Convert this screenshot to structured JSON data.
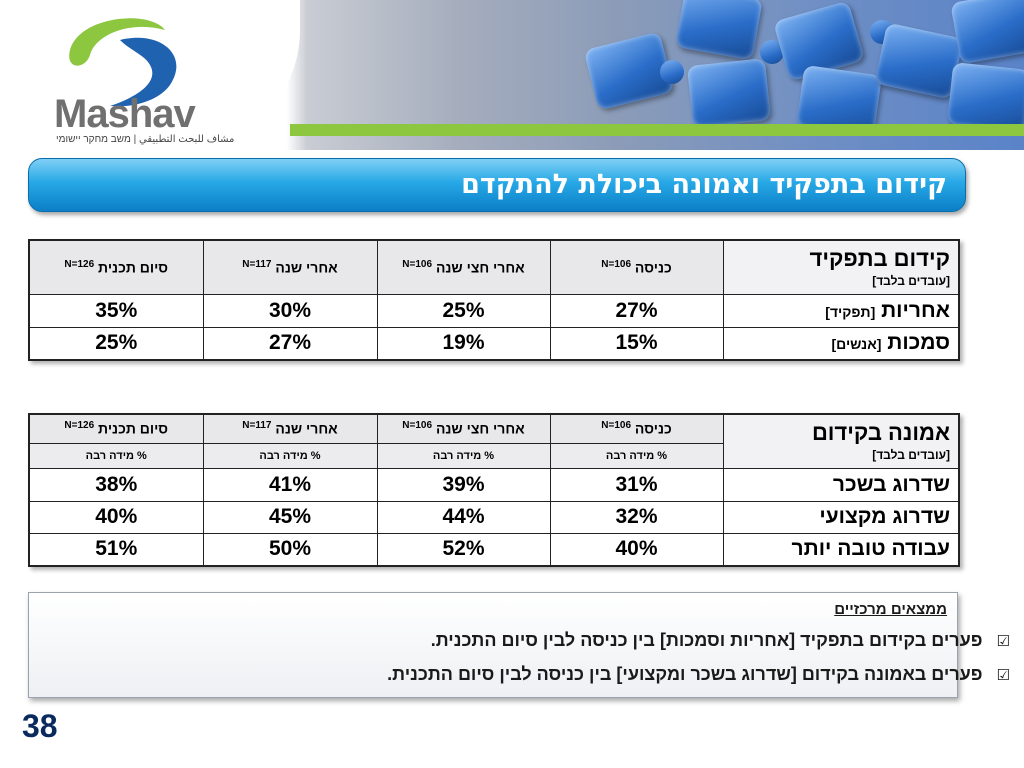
{
  "header": {
    "logo_text": "Mashav",
    "logo_subtitle": "مشاف للبحث التطبيقي | משב מחקר יישומי",
    "colors": {
      "green": "#8dc63f",
      "puzzle_blue": "#2a6dc9"
    }
  },
  "title": "קידום בתפקיד ואמונה ביכולת להתקדם",
  "table1": {
    "corner_title": "קידום בתפקיד",
    "corner_note": "[עובדים בלבד]",
    "columns": [
      {
        "label": "כניסה",
        "n": "N=106"
      },
      {
        "label": "אחרי חצי שנה",
        "n": "N=106"
      },
      {
        "label": "אחרי שנה",
        "n": "N=117"
      },
      {
        "label": "סיום תכנית",
        "n": "N=126"
      }
    ],
    "rows": [
      {
        "label": "אחריות",
        "note": "[תפקיד]",
        "values": [
          "27%",
          "25%",
          "30%",
          "35%"
        ]
      },
      {
        "label": "סמכות",
        "note": "[אנשים]",
        "values": [
          "15%",
          "19%",
          "27%",
          "25%"
        ]
      }
    ]
  },
  "table2": {
    "corner_title": "אמונה בקידום",
    "corner_note": "[עובדים בלבד]",
    "columns": [
      {
        "label": "כניסה",
        "n": "N=106"
      },
      {
        "label": "אחרי חצי שנה",
        "n": "N=106"
      },
      {
        "label": "אחרי שנה",
        "n": "N=117"
      },
      {
        "label": "סיום תכנית",
        "n": "N=126"
      }
    ],
    "subheader": "% מידה רבה",
    "rows": [
      {
        "label": "שדרוג בשכר",
        "values": [
          "31%",
          "39%",
          "41%",
          "38%"
        ]
      },
      {
        "label": "שדרוג מקצועי",
        "values": [
          "32%",
          "44%",
          "45%",
          "40%"
        ]
      },
      {
        "label": "עבודה טובה יותר",
        "values": [
          "40%",
          "52%",
          "50%",
          "51%"
        ]
      }
    ]
  },
  "findings": {
    "title": "ממצאים מרכזיים",
    "items": [
      "פערים בקידום בתפקיד [אחריות וסמכות] בין כניסה לבין סיום התכנית.",
      "פערים באמונה בקידום [שדרוג בשכר ומקצועי] בין כניסה לבין סיום התכנית."
    ],
    "check_glyph": "☑"
  },
  "page_number": "38"
}
